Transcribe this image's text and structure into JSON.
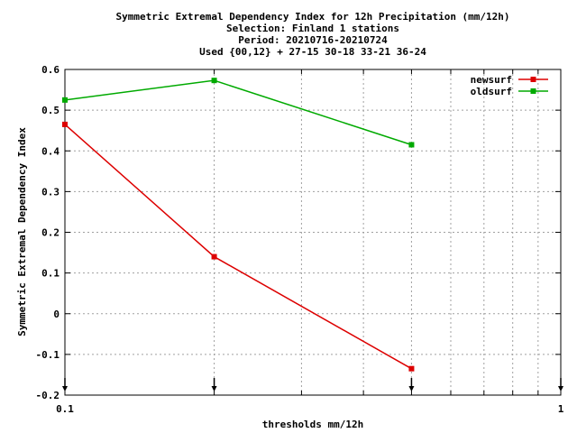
{
  "chart_data": {
    "type": "line",
    "title_lines": [
      "Symmetric Extremal Dependency Index  for 12h Precipitation (mm/12h)",
      "Selection: Finland      1 stations",
      "Period: 20210716-20210724",
      "Used {00,12} + 27-15 30-18 33-21 36-24"
    ],
    "xlabel": "thresholds mm/12h",
    "ylabel": "Symmetric Extremal Dependency Index",
    "x_scale": "log",
    "xlim": [
      0.1,
      1
    ],
    "ylim": [
      -0.2,
      0.6
    ],
    "x_tick_labels": [
      "0.1",
      "1"
    ],
    "y_ticks": [
      -0.2,
      -0.1,
      0,
      0.1,
      0.2,
      0.3,
      0.4,
      0.5,
      0.6
    ],
    "y_tick_labels": [
      "-0.2",
      "-0.1",
      "0",
      "0.1",
      "0.2",
      "0.3",
      "0.4",
      "0.5",
      "0.6"
    ],
    "grid": true,
    "legend_position": "top-right",
    "threshold_markers": [
      0.1,
      0.2,
      0.5,
      1
    ],
    "series": [
      {
        "name": "newsurf",
        "color": "#dd0000",
        "x": [
          0.1,
          0.2,
          0.5
        ],
        "y": [
          0.465,
          0.14,
          -0.135
        ]
      },
      {
        "name": "oldsurf",
        "color": "#00aa00",
        "x": [
          0.1,
          0.2,
          0.5
        ],
        "y": [
          0.525,
          0.573,
          0.415
        ]
      }
    ]
  }
}
